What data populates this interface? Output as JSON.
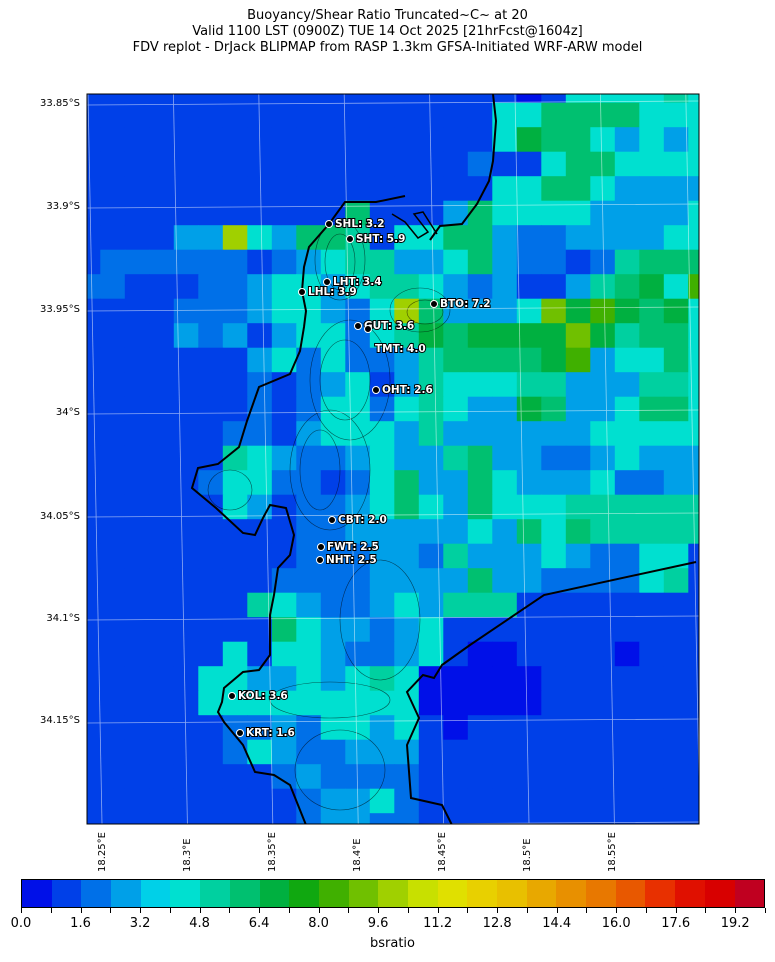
{
  "header": {
    "title_line1": "Buoyancy/Shear Ratio Truncated~C~    at 20",
    "title_line2": "Valid 1100 LST (0900Z) TUE 14 Oct 2025 [21hrFcst@1604z]",
    "title_line3": "FDV replot - DrJack BLIPMAP from RASP 1.3km GFSA-Initiated WRF-ARW model"
  },
  "map": {
    "lat_labels": [
      "33.85°S",
      "33.9°S",
      "33.95°S",
      "34°S",
      "34.05°S",
      "34.1°S",
      "34.15°S"
    ],
    "lon_labels": [
      "18.25°E",
      "18.3°E",
      "18.35°E",
      "18.4°E",
      "18.45°E",
      "18.5°E",
      "18.55°E"
    ],
    "field_bins_legend": "each character is a colorbar bin index (0 = 0.0–0.8, 1 = 0.8–1.6, … c = 9.6–10.4)",
    "field_bins": [
      "11111111111111111101555565",
      "11111111111111111557777555",
      "11111111111111111587753535",
      "11111111111111112115775555",
      "11111111111111111557753333",
      "11111111111711137555533335",
      "111133c5377615577322333355",
      "12222221235663357322126777",
      "2211122355356653231136785a",
      "1111222355325c73335b8a8785",
      "11113231355256878888b86775",
      "11111113525223677778a35575",
      "11111112123513655566333665",
      "11111112125525653387335775",
      "11111122135553633333355555",
      "11111165322353367332235333",
      "11111255221257337533352233",
      "11111153122357537555666666",
      "11111111122333335375766666",
      "11111111122233263335322551",
      "11111111222233337332222561",
      "11111116532235366611111111",
      "11111111753323511111111111",
      "11111151553223510011110111",
      "11111553353565000001111111",
      "11111555555555000001111111",
      "11111122325535101111111111",
      "11111125322333111111111111",
      "11111111232222111111111111",
      "11111111123352111111111111",
      "11111111123322111111111111"
    ],
    "stations": [
      {
        "label": "SHL: 3.2"
      },
      {
        "label": "SHT: 5.9"
      },
      {
        "label": "LHT: 3.4"
      },
      {
        "label": "LHL: 3.9"
      },
      {
        "label": "BTO: 7.2"
      },
      {
        "label": "GUT: 3.6"
      },
      {
        "label": "TMT: 4.0"
      },
      {
        "label": "OHT: 2.6"
      },
      {
        "label": "CBT: 2.0"
      },
      {
        "label": "FWT: 2.5"
      },
      {
        "label": "NHT: 2.5"
      },
      {
        "label": "KOL: 3.6"
      },
      {
        "label": "KRT: 1.6"
      }
    ]
  },
  "colorbar": {
    "label": "bsratio",
    "min": 0.0,
    "max": 20.0,
    "step": 0.8,
    "tick_labels": [
      "0.0",
      "1.6",
      "3.2",
      "4.8",
      "6.4",
      "8.0",
      "9.6",
      "11.2",
      "12.8",
      "14.4",
      "16.0",
      "17.6",
      "19.2"
    ],
    "colors": [
      "#0010e8",
      "#0040e8",
      "#0070e8",
      "#00a0e8",
      "#00d0e8",
      "#00e0d0",
      "#00d0a0",
      "#00c070",
      "#00b040",
      "#10a810",
      "#40b000",
      "#70c000",
      "#a0d000",
      "#c8e000",
      "#e0e000",
      "#e8d000",
      "#e8c000",
      "#e8a800",
      "#e89000",
      "#e87800",
      "#e85800",
      "#e83000",
      "#e01000",
      "#d80000",
      "#c00020"
    ]
  }
}
